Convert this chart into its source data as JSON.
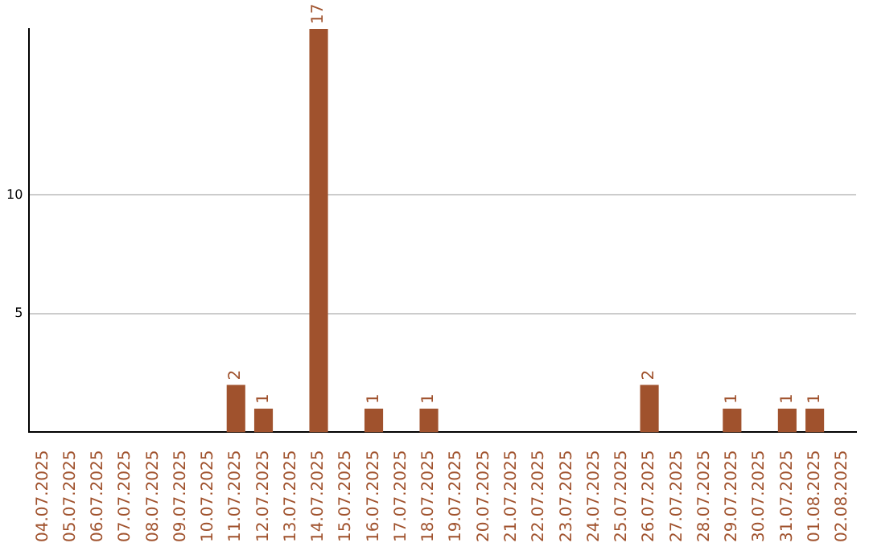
{
  "chart_data": {
    "type": "bar",
    "categories": [
      "04.07.2025",
      "05.07.2025",
      "06.07.2025",
      "07.07.2025",
      "08.07.2025",
      "09.07.2025",
      "10.07.2025",
      "11.07.2025",
      "12.07.2025",
      "13.07.2025",
      "14.07.2025",
      "15.07.2025",
      "16.07.2025",
      "17.07.2025",
      "18.07.2025",
      "19.07.2025",
      "20.07.2025",
      "21.07.2025",
      "22.07.2025",
      "23.07.2025",
      "24.07.2025",
      "25.07.2025",
      "26.07.2025",
      "27.07.2025",
      "28.07.2025",
      "29.07.2025",
      "30.07.2025",
      "31.07.2025",
      "01.08.2025",
      "02.08.2025"
    ],
    "values": [
      0,
      0,
      0,
      0,
      0,
      0,
      0,
      2,
      1,
      0,
      17,
      0,
      1,
      0,
      1,
      0,
      0,
      0,
      0,
      0,
      0,
      0,
      2,
      0,
      0,
      1,
      0,
      1,
      1,
      0
    ],
    "value_labels": [
      null,
      null,
      null,
      null,
      null,
      null,
      null,
      "2",
      "1",
      null,
      "17",
      null,
      "1",
      null,
      "1",
      null,
      null,
      null,
      null,
      null,
      null,
      null,
      "2",
      null,
      null,
      "1",
      null,
      "1",
      "1",
      null
    ],
    "color": "#a0522d",
    "ylim": [
      0,
      17
    ],
    "yticks": [
      5,
      10
    ],
    "grid": "y",
    "legend": false
  }
}
